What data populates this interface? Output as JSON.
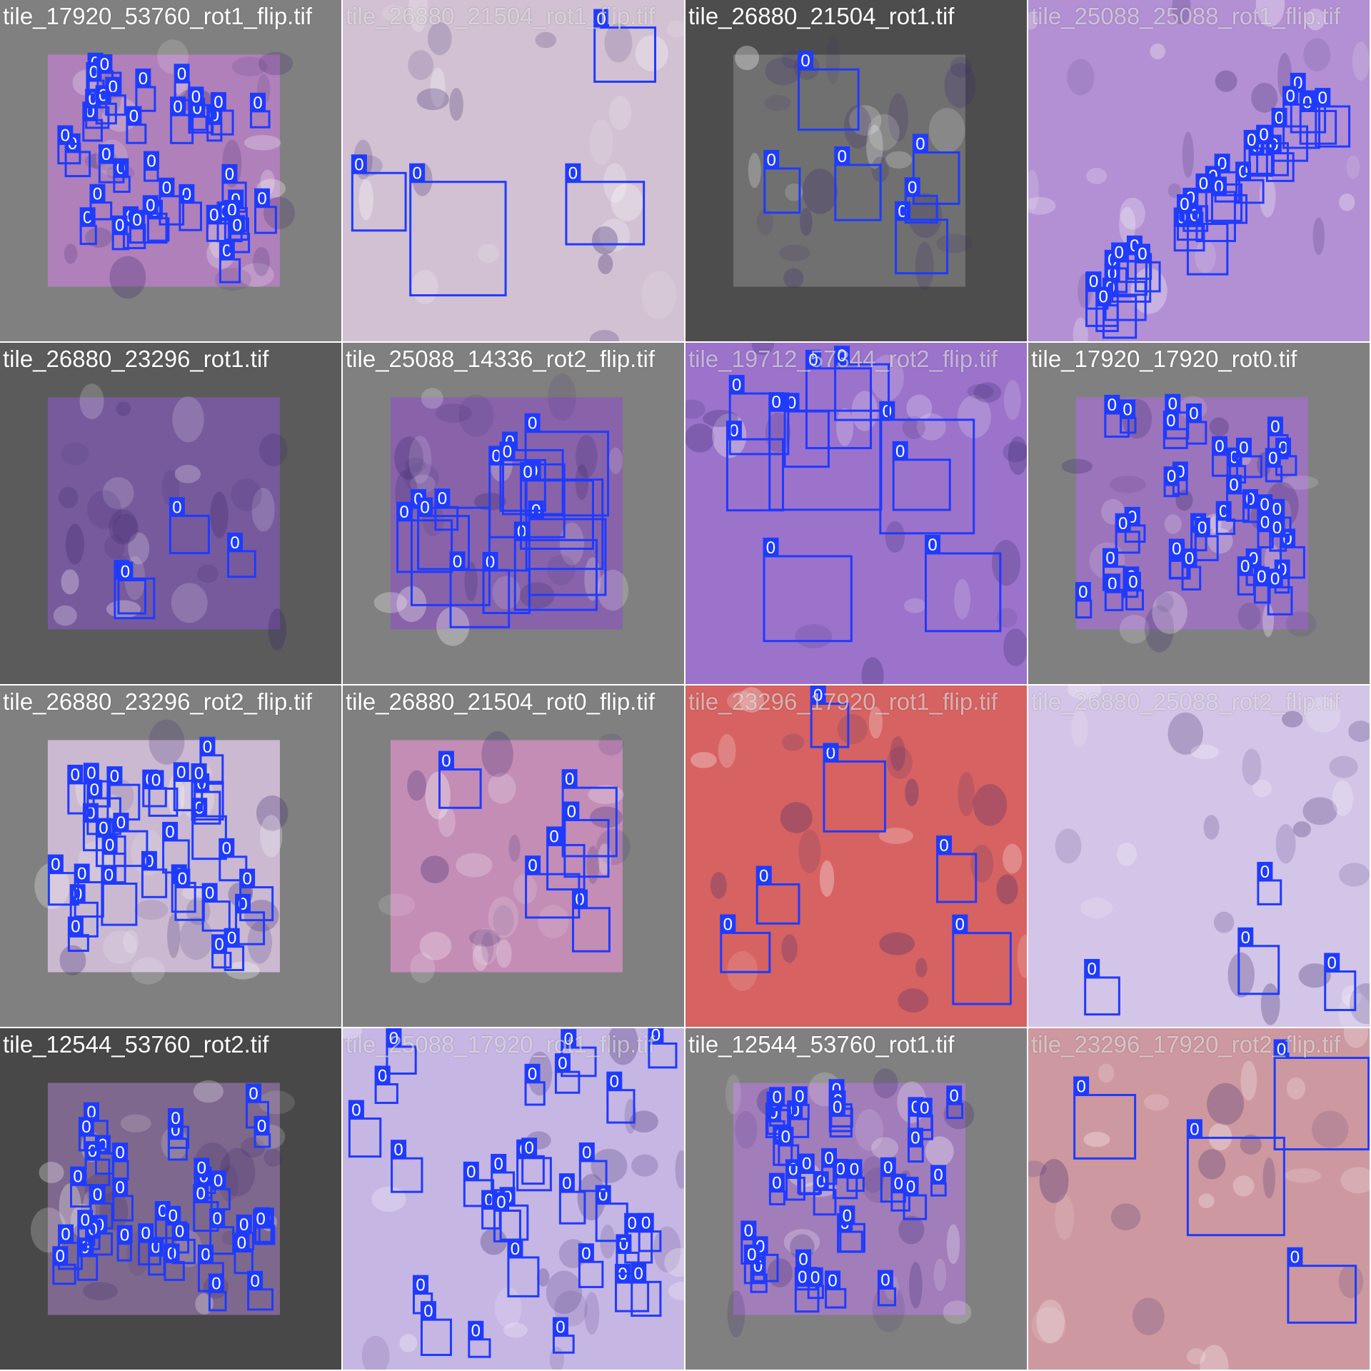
{
  "grid": {
    "rows": 4,
    "cols": 4,
    "detection_class_label": "0",
    "box_color": "#1f3bff",
    "label_text_color": "#ffffff"
  },
  "tiles": [
    {
      "name": "tile_17920_53760_rot1_flip.tif",
      "bg": "#808080",
      "tissue": "#b780c4",
      "style": "dense-small"
    },
    {
      "name": "tile_26880_21504_rot1_flip.tif",
      "bg": "#c7b7cf",
      "tissue": "#d3c2d3",
      "style": "few-large"
    },
    {
      "name": "tile_26880_21504_rot1.tif",
      "bg": "#4d4d4d",
      "tissue": "#777777",
      "style": "few-medium"
    },
    {
      "name": "tile_25088_25088_rot1_flip.tif",
      "bg": "#f3f2f5",
      "tissue": "#a77fcc",
      "style": "diagonal"
    },
    {
      "name": "tile_26880_23296_rot1.tif",
      "bg": "#5b5b5b",
      "tissue": "#7d5aa8",
      "style": "few-small"
    },
    {
      "name": "tile_25088_14336_rot2_flip.tif",
      "bg": "#808080",
      "tissue": "#8a5eb1",
      "style": "cluster"
    },
    {
      "name": "tile_19712_57344_rot2_flip.tif",
      "bg": "#ffffff",
      "tissue": "#8a5ac2",
      "style": "large-overlap"
    },
    {
      "name": "tile_17920_17920_rot0.tif",
      "bg": "#808080",
      "tissue": "#a072c5",
      "style": "dense-small"
    },
    {
      "name": "tile_26880_23296_rot2_flip.tif",
      "bg": "#808080",
      "tissue": "#d8c3e0",
      "style": "dense-medium"
    },
    {
      "name": "tile_26880_21504_rot0_flip.tif",
      "bg": "#808080",
      "tissue": "#cf8fbf",
      "style": "few-medium"
    },
    {
      "name": "tile_23296_17920_rot1_flip.tif",
      "bg": "#f7e7ee",
      "tissue": "#d04a48",
      "style": "few-medium"
    },
    {
      "name": "tile_26880_25088_rot2_flip.tif",
      "bg": "#ffffff",
      "tissue": "#cbbbe3",
      "style": "few-small"
    },
    {
      "name": "tile_12544_53760_rot2.tif",
      "bg": "#484848",
      "tissue": "#8a6e9a",
      "style": "dense-small"
    },
    {
      "name": "tile_25088_17920_rot1_flip.tif",
      "bg": "#ebe0f2",
      "tissue": "#bfaee0",
      "style": "dense-medium"
    },
    {
      "name": "tile_12544_53760_rot1.tif",
      "bg": "#808080",
      "tissue": "#a77cc4",
      "style": "dense-small"
    },
    {
      "name": "tile_23296_17920_rot2_flip.tif",
      "bg": "#f4eaf3",
      "tissue": "#c68a8f",
      "style": "few-large"
    }
  ]
}
